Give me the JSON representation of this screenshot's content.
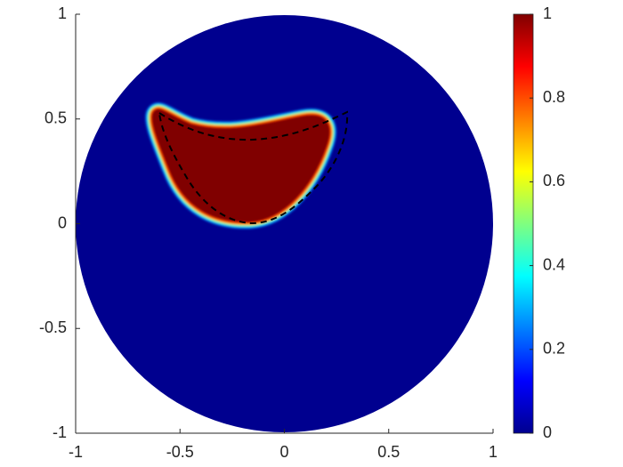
{
  "chart_data": {
    "type": "heatmap",
    "xlim": [
      -1,
      1
    ],
    "ylim": [
      -1,
      1
    ],
    "xticks": [
      -1,
      -0.5,
      0,
      0.5,
      1
    ],
    "yticks": [
      -1,
      -0.5,
      0,
      0.5,
      1
    ],
    "colorbar": {
      "lim": [
        0,
        1
      ],
      "ticks": [
        0,
        0.2,
        0.4,
        0.6,
        0.8,
        1
      ],
      "colormap": "jet"
    }
  }
}
